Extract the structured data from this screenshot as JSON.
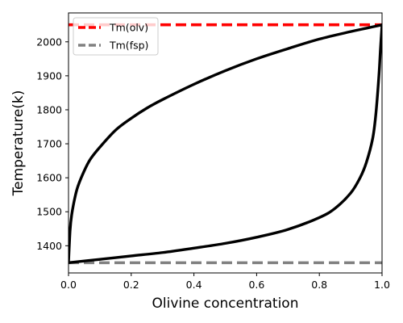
{
  "chart_data": {
    "type": "line",
    "title": "",
    "xlabel": "Olivine concentration",
    "ylabel": "Temperature(k)",
    "xlim": [
      0,
      1
    ],
    "ylim": [
      1320,
      2085
    ],
    "xticks": [
      0,
      0.2,
      0.4,
      0.6,
      0.8,
      1.0
    ],
    "xtick_labels": [
      "0.0",
      "0.2",
      "0.4",
      "0.6",
      "0.8",
      "1.0"
    ],
    "yticks": [
      1400,
      1500,
      1600,
      1700,
      1800,
      1900,
      2000
    ],
    "ytick_labels": [
      "1400",
      "1500",
      "1600",
      "1700",
      "1800",
      "1900",
      "2000"
    ],
    "grid": false,
    "legend_position": "top-left",
    "reference_lines": [
      {
        "name": "Tm(olv)",
        "y": 2050,
        "color": "#ff0000",
        "style": "dashed"
      },
      {
        "name": "Tm(fsp)",
        "y": 1350,
        "color": "#808080",
        "style": "dashed"
      }
    ],
    "series": [
      {
        "color": "#000000",
        "x": [
          0,
          0.005,
          0.01,
          0.02,
          0.03,
          0.05,
          0.07,
          0.1,
          0.15,
          0.2,
          0.25,
          0.3,
          0.4,
          0.5,
          0.6,
          0.7,
          0.8,
          0.9,
          0.95,
          1.0
        ],
        "y": [
          1350,
          1445,
          1490,
          1540,
          1575,
          1620,
          1655,
          1690,
          1740,
          1775,
          1805,
          1830,
          1875,
          1915,
          1950,
          1980,
          2008,
          2030,
          2040,
          2050
        ]
      },
      {
        "color": "#000000",
        "x": [
          0,
          0.1,
          0.2,
          0.3,
          0.4,
          0.5,
          0.6,
          0.7,
          0.8,
          0.85,
          0.9,
          0.93,
          0.95,
          0.97,
          0.98,
          0.99,
          0.995,
          1.0
        ],
        "y": [
          1350,
          1360,
          1370,
          1380,
          1393,
          1407,
          1425,
          1448,
          1483,
          1510,
          1555,
          1600,
          1645,
          1715,
          1785,
          1900,
          1980,
          2050
        ]
      }
    ]
  }
}
